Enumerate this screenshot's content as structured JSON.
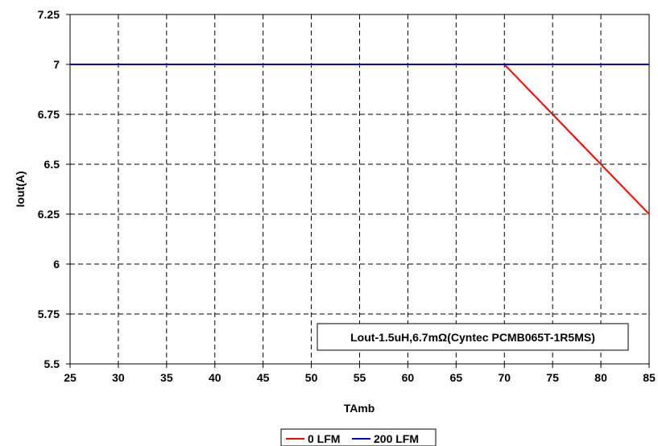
{
  "chart_data": {
    "type": "line",
    "title": "",
    "xlabel": "TAmb",
    "ylabel": "Iout(A)",
    "xlim": [
      25,
      85
    ],
    "ylim": [
      5.5,
      7.25
    ],
    "xticks": [
      25,
      30,
      35,
      40,
      45,
      50,
      55,
      60,
      65,
      70,
      75,
      80,
      85
    ],
    "yticks": [
      5.5,
      5.75,
      6,
      6.25,
      6.5,
      6.75,
      7,
      7.25
    ],
    "xtick_labels": [
      "25",
      "30",
      "35",
      "40",
      "45",
      "50",
      "55",
      "60",
      "65",
      "70",
      "75",
      "80",
      "85"
    ],
    "ytick_labels": [
      "5.5",
      "5.75",
      "6",
      "6.25",
      "6.5",
      "6.75",
      "7",
      "7.25"
    ],
    "grid": true,
    "grid_style": "dashed",
    "legend_position": "bottom-center",
    "annotation": "Lout-1.5uH,6.7mΩ(Cyntec PCMB065T-1R5MS)",
    "series": [
      {
        "name": "0 LFM",
        "color": "#ff0000",
        "x": [
          25,
          70,
          75,
          80,
          85
        ],
        "y": [
          7,
          7,
          6.75,
          6.5,
          6.25
        ]
      },
      {
        "name": "200 LFM",
        "color": "#0000cc",
        "x": [
          25,
          85
        ],
        "y": [
          7,
          7
        ]
      }
    ]
  }
}
